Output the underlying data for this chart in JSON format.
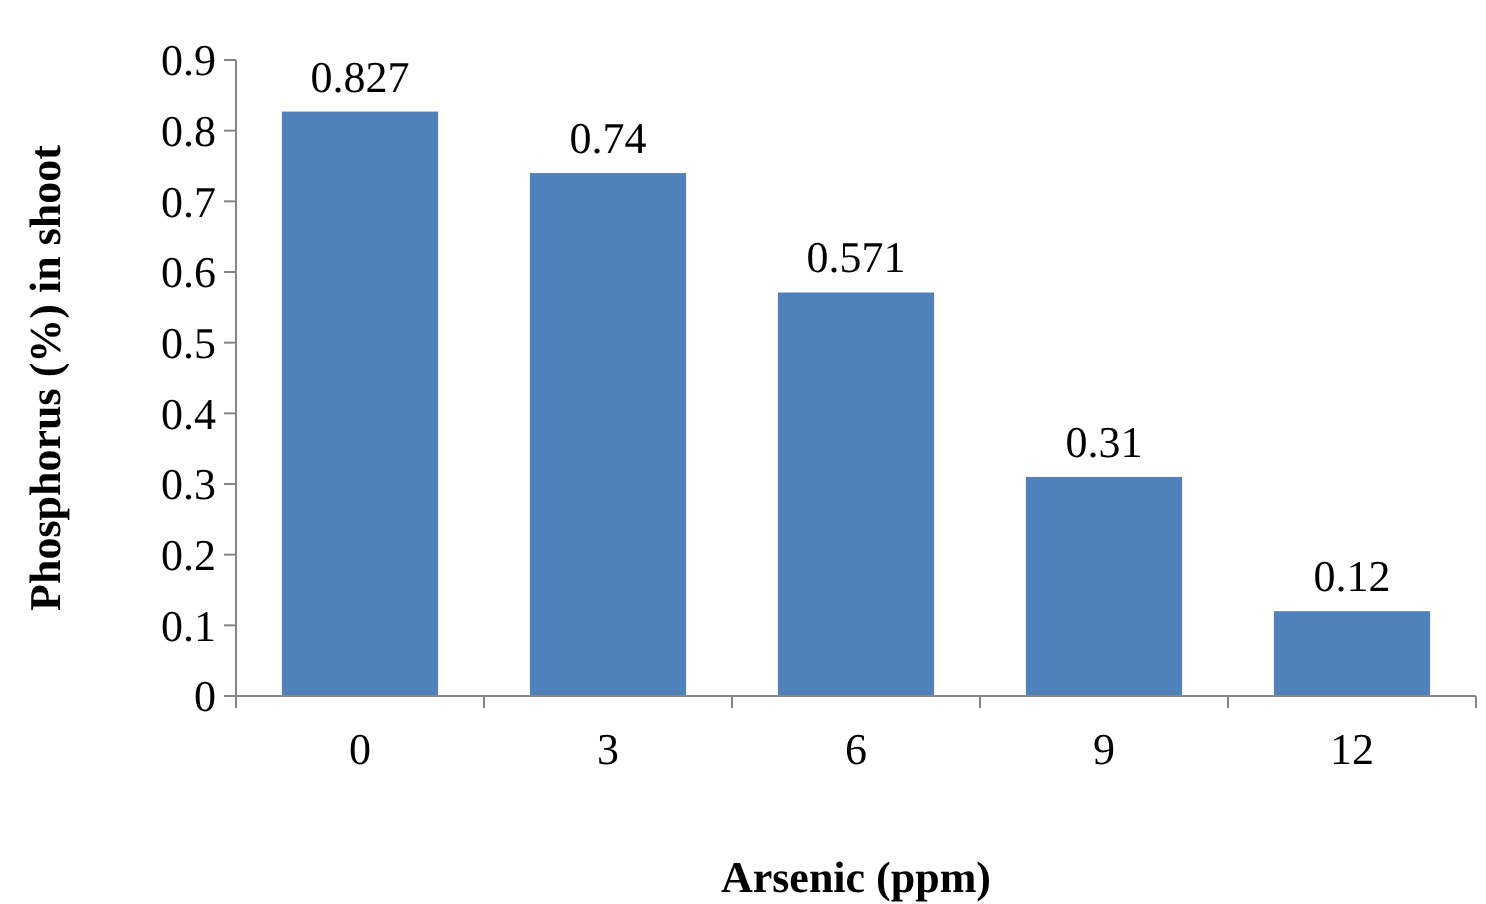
{
  "chart_data": {
    "type": "bar",
    "xlabel": "Arsenic (ppm)",
    "ylabel": "Phosphorus (%) in shoot",
    "categories": [
      "0",
      "3",
      "6",
      "9",
      "12"
    ],
    "values": [
      0.827,
      0.74,
      0.571,
      0.31,
      0.12
    ],
    "color": "#4f81bd",
    "ylim": [
      0,
      0.9
    ],
    "yticks": [
      0,
      0.1,
      0.2,
      0.3,
      0.4,
      0.5,
      0.6,
      0.7,
      0.8,
      0.9
    ],
    "data_labels": true
  }
}
